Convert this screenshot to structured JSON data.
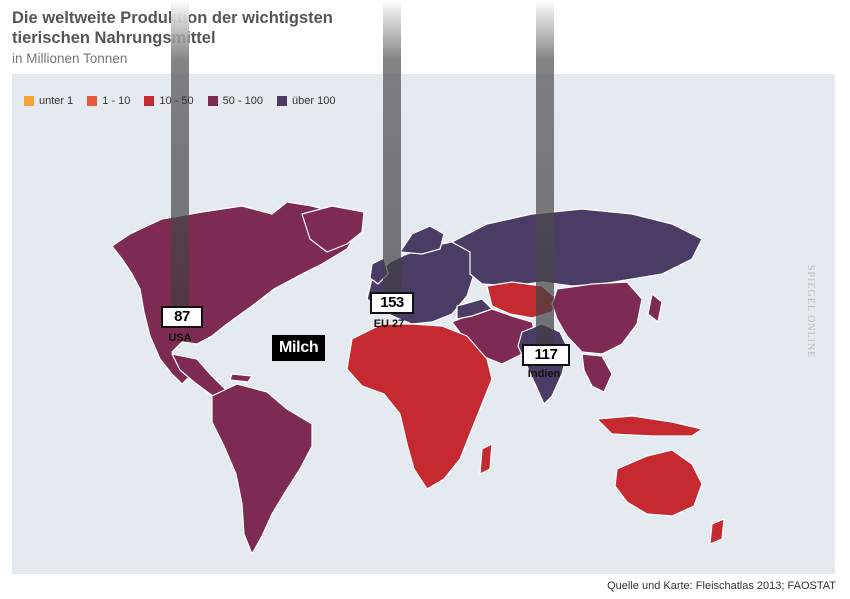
{
  "title": "Die weltweite Produktion der wichtigsten tierischen Nahrungsmittel",
  "subtitle": "in Millionen Tonnen",
  "legend": [
    {
      "label": "unter 1",
      "color": "#f4a23a"
    },
    {
      "label": "1 - 10",
      "color": "#e8583a"
    },
    {
      "label": "10 - 50",
      "color": "#c42a2f"
    },
    {
      "label": "50 - 100",
      "color": "#7d2b52"
    },
    {
      "label": "über 100",
      "color": "#4a3c64"
    }
  ],
  "product_label": "Milch",
  "callouts": [
    {
      "value": "87",
      "name": "USA"
    },
    {
      "value": "153",
      "name": "EU 27"
    },
    {
      "value": "117",
      "name": "Indien"
    }
  ],
  "source": "Quelle und Karte: Fleischatlas 2013; FAOSTAT",
  "watermark": "SPIEGEL ONLINE",
  "colors": {
    "ocean": "#e4eaef",
    "border": "#ffffff"
  }
}
